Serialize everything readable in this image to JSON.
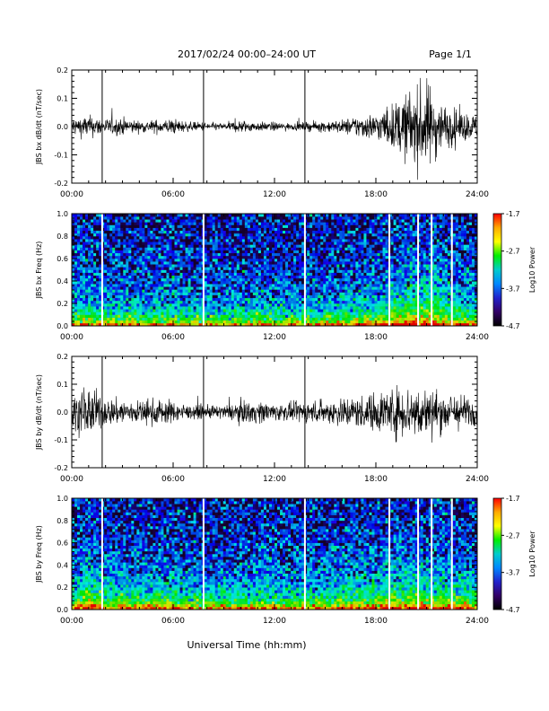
{
  "header": {
    "title": "2017/02/24  00:00–24:00 UT",
    "page": "Page 1/1"
  },
  "footer": {
    "xlabel": "Universal Time (hh:mm)"
  },
  "colors": {
    "trace": "#000000",
    "gap_line": "#ffffff",
    "colorbar": [
      "#ff0000",
      "#ffaa00",
      "#ffff00",
      "#00ee00",
      "#00cccc",
      "#0088ff",
      "#2222cc",
      "#330066",
      "#000000"
    ]
  },
  "chart_data": [
    {
      "type": "line",
      "ylabel": "JBS bx dB/dt (nT/sec)",
      "xlim": [
        0,
        24
      ],
      "ylim": [
        -0.2,
        0.2
      ],
      "x_ticks": [
        "00:00",
        "06:00",
        "12:00",
        "18:00",
        "24:00"
      ],
      "y_ticks": [
        "0.2",
        "0.1",
        "0.0",
        "-0.1",
        "-0.2"
      ],
      "gaps_hours": [
        1.8,
        7.8,
        13.8
      ],
      "series": [
        {
          "x": [
            0,
            1,
            2,
            3,
            4,
            5,
            6,
            7,
            8,
            9,
            10,
            11,
            12,
            13,
            14,
            15,
            16,
            17,
            18,
            19,
            20,
            21,
            22,
            23,
            24
          ],
          "values": [
            0.04,
            0.05,
            0.035,
            0.04,
            0.025,
            0.03,
            0.035,
            0.02,
            0.02,
            0.015,
            0.03,
            0.02,
            0.02,
            0.015,
            0.02,
            0.025,
            0.03,
            0.05,
            0.06,
            0.1,
            0.16,
            0.2,
            0.1,
            0.07,
            0.05
          ]
        }
      ]
    },
    {
      "type": "heatmap",
      "ylabel": "JBS bx Freq (Hz)",
      "xlim": [
        0,
        24
      ],
      "ylim": [
        0.0,
        1.0
      ],
      "x_ticks": [
        "00:00",
        "06:00",
        "12:00",
        "18:00",
        "24:00"
      ],
      "y_ticks": [
        "1.0",
        "0.8",
        "0.6",
        "0.4",
        "0.2",
        "0.0"
      ],
      "colorbar_label": "Log10 Power",
      "colorbar_ticks": [
        "-1.7",
        "-2.7",
        "-3.7",
        "-4.7"
      ],
      "zlim": [
        -4.7,
        -1.7
      ],
      "gaps_hours": [
        1.8,
        7.8,
        13.8,
        18.8,
        20.5,
        21.3,
        22.5
      ]
    },
    {
      "type": "line",
      "ylabel": "JBS by dB/dt (nT/sec)",
      "xlim": [
        0,
        24
      ],
      "ylim": [
        -0.2,
        0.2
      ],
      "x_ticks": [
        "00:00",
        "06:00",
        "12:00",
        "18:00",
        "24:00"
      ],
      "y_ticks": [
        "0.2",
        "0.1",
        "0.0",
        "-0.1",
        "-0.2"
      ],
      "gaps_hours": [
        1.8,
        7.8,
        13.8
      ],
      "series": [
        {
          "x": [
            0,
            1,
            2,
            3,
            4,
            5,
            6,
            7,
            8,
            9,
            10,
            11,
            12,
            13,
            14,
            15,
            16,
            17,
            18,
            19,
            20,
            21,
            22,
            23,
            24
          ],
          "values": [
            0.07,
            0.12,
            0.06,
            0.06,
            0.05,
            0.06,
            0.05,
            0.03,
            0.03,
            0.03,
            0.05,
            0.05,
            0.04,
            0.04,
            0.05,
            0.05,
            0.07,
            0.07,
            0.09,
            0.11,
            0.12,
            0.11,
            0.09,
            0.08,
            0.06
          ]
        }
      ]
    },
    {
      "type": "heatmap",
      "ylabel": "JBS by Freq (Hz)",
      "xlim": [
        0,
        24
      ],
      "ylim": [
        0.0,
        1.0
      ],
      "x_ticks": [
        "00:00",
        "06:00",
        "12:00",
        "18:00",
        "24:00"
      ],
      "y_ticks": [
        "1.0",
        "0.8",
        "0.6",
        "0.4",
        "0.2",
        "0.0"
      ],
      "colorbar_label": "Log10 Power",
      "colorbar_ticks": [
        "-1.7",
        "-2.7",
        "-3.7",
        "-4.7"
      ],
      "zlim": [
        -4.7,
        -1.7
      ],
      "gaps_hours": [
        1.8,
        7.8,
        13.8,
        18.8,
        20.5,
        21.3,
        22.5
      ]
    }
  ]
}
